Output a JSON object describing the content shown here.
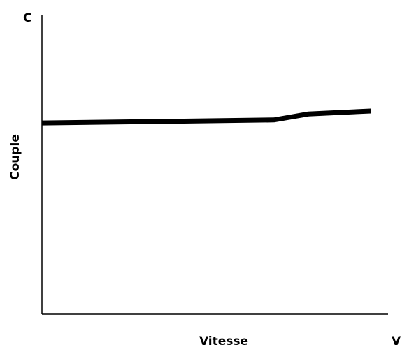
{
  "chart_data": {
    "type": "line",
    "y_axis_end_label": "C",
    "x_axis_end_label": "V",
    "ylabel": "Couple",
    "xlabel": "Vitesse",
    "x": [
      0,
      67,
      77,
      95
    ],
    "series": [
      {
        "color": "#000000",
        "values": [
          64,
          65,
          67,
          68
        ]
      }
    ],
    "xlim": [
      0,
      100
    ],
    "ylim": [
      0,
      100
    ]
  }
}
